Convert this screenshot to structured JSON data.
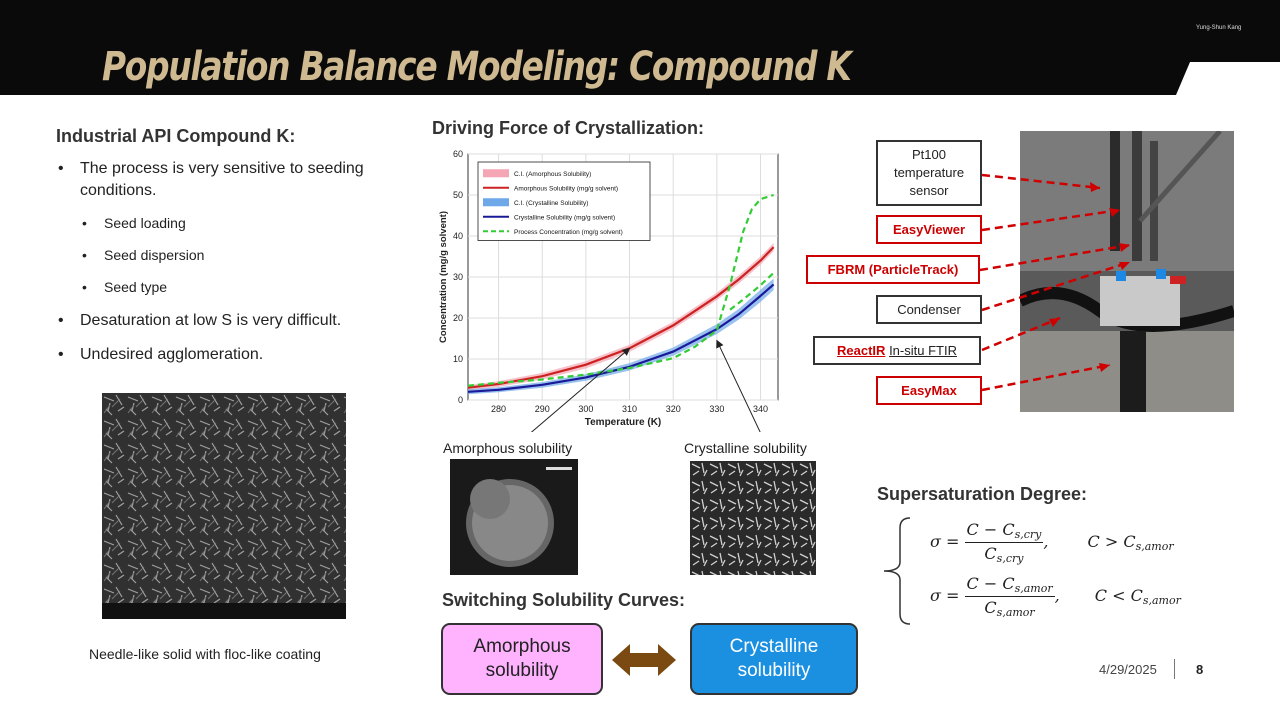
{
  "header": {
    "title": "Population Balance Modeling: Compound K",
    "presenter": "Yung-Shun Kang"
  },
  "left": {
    "heading": "Industrial API Compound K:",
    "bullets": [
      "The process is very sensitive to seeding conditions.",
      "Seed loading",
      "Seed dispersion",
      "Seed type",
      "Desaturation at low S is very difficult.",
      "Undesired agglomeration."
    ],
    "image_caption": "Needle-like solid with floc-like coating"
  },
  "middle": {
    "heading": "Driving Force of Crystallization:",
    "amorphous_label": "Amorphous solubility",
    "crystalline_label": "Crystalline solubility",
    "switch_heading": "Switching Solubility Curves:",
    "box_amorphous": "Amorphous solubility",
    "box_crystalline": "Crystalline solubility"
  },
  "chart_data": {
    "type": "line",
    "xlabel": "Temperature (K)",
    "ylabel": "Concentration (mg/g solvent)",
    "xlim": [
      273,
      344
    ],
    "ylim": [
      0,
      60
    ],
    "xticks": [
      280,
      290,
      300,
      310,
      320,
      330,
      340
    ],
    "yticks": [
      0,
      10,
      20,
      30,
      40,
      50,
      60
    ],
    "grid": true,
    "legend_position": "top-left",
    "series": [
      {
        "name": "C.I. (Amorphous Solubility)",
        "kind": "band",
        "color": "#f4a6b4",
        "x": [
          273,
          280,
          290,
          300,
          310,
          320,
          330,
          335,
          340,
          343
        ],
        "lower": [
          2.4,
          3.2,
          5.0,
          7.7,
          11.7,
          17.3,
          24.4,
          28.4,
          33.0,
          36.3
        ],
        "upper": [
          3.6,
          4.6,
          6.6,
          9.5,
          13.5,
          19.1,
          26.2,
          30.4,
          35.0,
          38.3
        ]
      },
      {
        "name": "Amorphous Solubility (mg/g solvent)",
        "kind": "line",
        "color": "#cc2222",
        "x": [
          273,
          280,
          290,
          300,
          310,
          320,
          330,
          335,
          340,
          343
        ],
        "y": [
          3.0,
          3.9,
          5.8,
          8.6,
          12.6,
          18.2,
          25.3,
          29.4,
          34.0,
          37.3
        ]
      },
      {
        "name": "C.I. (Crystalline Solubility)",
        "kind": "band",
        "color": "#6fa8e8",
        "x": [
          273,
          280,
          290,
          300,
          310,
          320,
          330,
          335,
          340,
          343
        ],
        "lower": [
          1.4,
          1.9,
          3.0,
          4.7,
          7.2,
          10.8,
          16.1,
          19.6,
          23.9,
          26.8
        ],
        "upper": [
          2.6,
          3.1,
          4.4,
          6.3,
          9.0,
          12.8,
          18.5,
          22.2,
          26.9,
          29.6
        ]
      },
      {
        "name": "Crystalline Solubility (mg/g solvent)",
        "kind": "line",
        "color": "#1a1a99",
        "x": [
          273,
          280,
          290,
          300,
          310,
          320,
          330,
          335,
          340,
          343
        ],
        "y": [
          2.0,
          2.5,
          3.7,
          5.5,
          8.1,
          11.8,
          17.3,
          20.9,
          25.4,
          28.2
        ]
      },
      {
        "name": "Process Concentration (mg/g solvent)",
        "kind": "dashed",
        "color": "#33cc33",
        "x": [
          273,
          280,
          290,
          300,
          310,
          320,
          325,
          330,
          333,
          336,
          338,
          340,
          343
        ],
        "y": [
          3.5,
          4.2,
          5.0,
          6.2,
          7.8,
          10.2,
          13.0,
          17.0,
          28.0,
          41.0,
          46.5,
          49.0,
          50.0
        ]
      },
      {
        "name": "Process Concentration (mg/g solvent)",
        "kind": "dashed",
        "color": "#33cc33",
        "x": [
          333,
          336,
          340,
          343
        ],
        "y": [
          22.0,
          24.5,
          28.0,
          31.0
        ]
      }
    ]
  },
  "right": {
    "labels": {
      "pt100": "Pt100 temperature sensor",
      "easyviewer": "EasyViewer",
      "fbrm": "FBRM (ParticleTrack)",
      "condenser": "Condenser",
      "reactir": "ReactIR",
      "reactir_suffix": "In-situ FTIR",
      "easymax": "EasyMax"
    },
    "sup_heading": "Supersaturation Degree:"
  },
  "formulas": {
    "sigma": "σ =",
    "num1": "C − C",
    "num2": "C − C",
    "sub_cry": "s,cry",
    "sub_amor": "s,amor",
    "cond1_lhs": "C > C",
    "cond2_lhs": "C < C",
    "comma": ","
  },
  "footer": {
    "date": "4/29/2025",
    "page": "8"
  },
  "colors": {
    "header_bg": "#0a0a0a",
    "title_gold": "#cfb991",
    "accent_red": "#cc0000",
    "amorphous_box": "#ffb3ff",
    "crystalline_box": "#1b8fe0"
  }
}
